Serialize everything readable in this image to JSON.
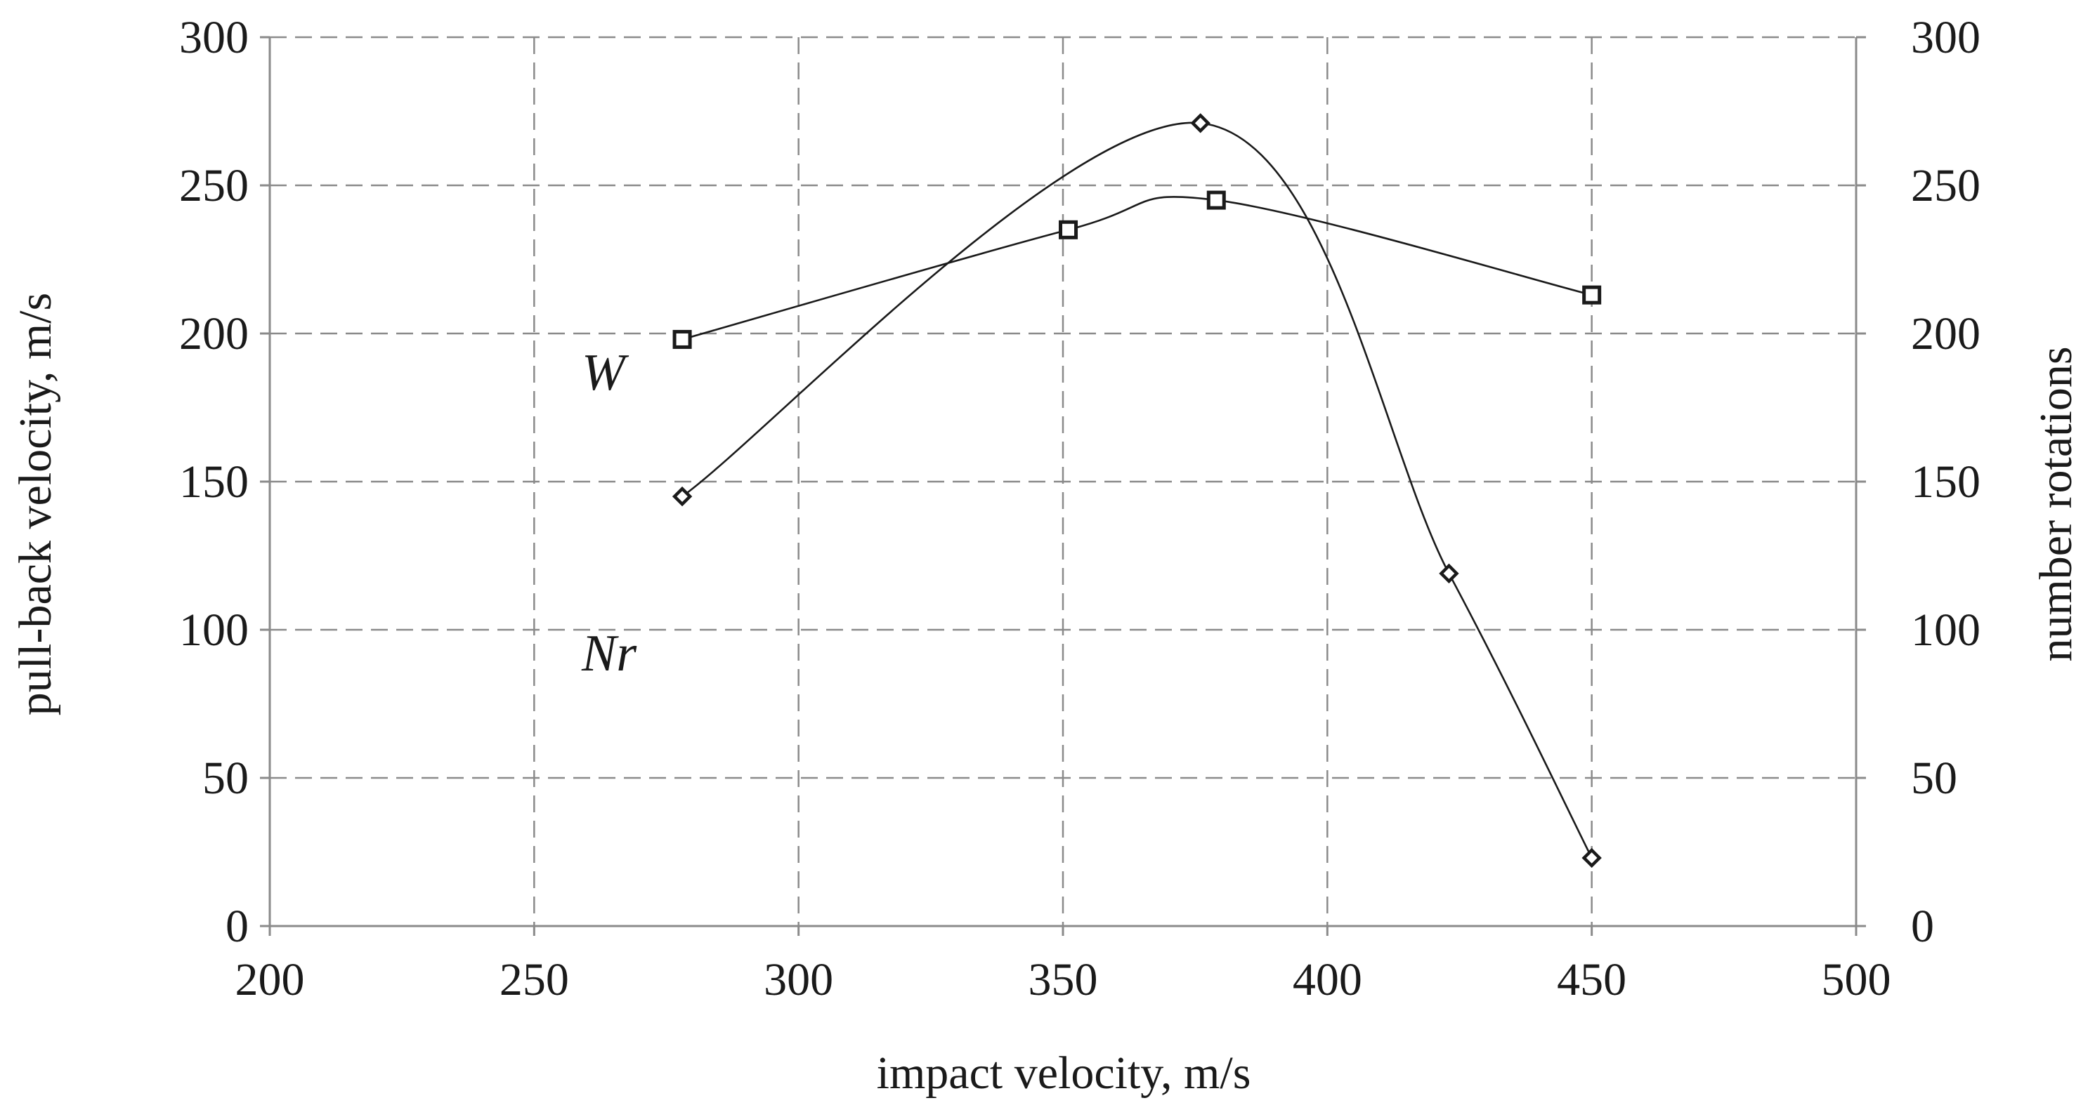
{
  "chart_data": {
    "type": "line",
    "title": "",
    "xlabel": "impact velocity, m/s",
    "ylabel": "pull-back velocity, m/s",
    "y2label": "number  rotations",
    "xlim": [
      200,
      500
    ],
    "ylim": [
      0,
      300
    ],
    "y2lim": [
      0,
      300
    ],
    "grid": true,
    "x_ticks": [
      200,
      250,
      300,
      350,
      400,
      450,
      500
    ],
    "y_ticks": [
      0,
      50,
      100,
      150,
      200,
      250,
      300
    ],
    "y2_ticks": [
      0,
      50,
      100,
      150,
      200,
      250,
      300
    ],
    "series": [
      {
        "name": "W",
        "axis": "left",
        "marker": "square",
        "x": [
          278,
          351,
          379,
          450
        ],
        "y": [
          198,
          235,
          245,
          213
        ]
      },
      {
        "name": "Nr",
        "axis": "right",
        "marker": "diamond",
        "x": [
          278,
          376,
          423,
          450
        ],
        "y": [
          145,
          271,
          119,
          23
        ]
      }
    ]
  }
}
